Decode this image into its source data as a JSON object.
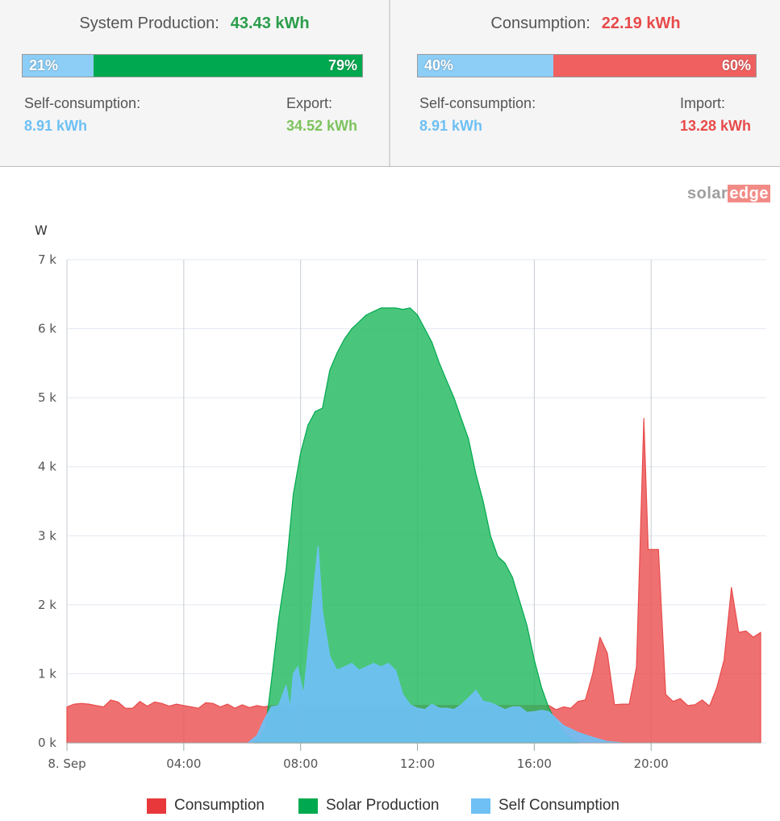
{
  "summary": {
    "production": {
      "label": "System Production:",
      "value": "43.43 kWh",
      "bar": {
        "left_pct": "21%",
        "right_pct": "79%",
        "left_fraction": 0.21
      },
      "self_label": "Self-consumption:",
      "self_value": "8.91 kWh",
      "other_label": "Export:",
      "other_value": "34.52 kWh"
    },
    "consumption": {
      "label": "Consumption:",
      "value": "22.19 kWh",
      "bar": {
        "left_pct": "40%",
        "right_pct": "60%",
        "left_fraction": 0.4
      },
      "self_label": "Self-consumption:",
      "self_value": "8.91 kWh",
      "other_label": "Import:",
      "other_value": "13.28 kWh"
    }
  },
  "logo": {
    "part1": "solar",
    "part2": "edge"
  },
  "colors": {
    "production": "#00a94f",
    "consumption": "#e84a4a",
    "self": "#6ec0f5",
    "export_text": "#7dc35d",
    "import_text": "#e84a4a",
    "self_text": "#6ec0f5"
  },
  "chart_data": {
    "type": "area",
    "ylabel": "W",
    "ylim": [
      0,
      7000
    ],
    "yticks": [
      "0 k",
      "1 k",
      "2 k",
      "3 k",
      "4 k",
      "5 k",
      "6 k",
      "7 k"
    ],
    "xlim": [
      0,
      23.75
    ],
    "xticks": [
      {
        "h": 0,
        "label": "8. Sep"
      },
      {
        "h": 4,
        "label": "04:00"
      },
      {
        "h": 8,
        "label": "08:00"
      },
      {
        "h": 12,
        "label": "12:00"
      },
      {
        "h": 16,
        "label": "16:00"
      },
      {
        "h": 20,
        "label": "20:00"
      }
    ],
    "grid": true,
    "legend_position": "bottom",
    "series": [
      {
        "name": "Consumption",
        "color": "#e84a4a",
        "points": [
          [
            0,
            520
          ],
          [
            0.25,
            560
          ],
          [
            0.5,
            570
          ],
          [
            0.75,
            560
          ],
          [
            1,
            540
          ],
          [
            1.25,
            520
          ],
          [
            1.5,
            620
          ],
          [
            1.75,
            590
          ],
          [
            2,
            500
          ],
          [
            2.25,
            500
          ],
          [
            2.5,
            600
          ],
          [
            2.75,
            530
          ],
          [
            3,
            590
          ],
          [
            3.25,
            570
          ],
          [
            3.5,
            530
          ],
          [
            3.75,
            560
          ],
          [
            4,
            540
          ],
          [
            4.25,
            520
          ],
          [
            4.5,
            500
          ],
          [
            4.75,
            580
          ],
          [
            5,
            570
          ],
          [
            5.25,
            520
          ],
          [
            5.5,
            560
          ],
          [
            5.75,
            500
          ],
          [
            6,
            550
          ],
          [
            6.25,
            510
          ],
          [
            6.5,
            540
          ],
          [
            6.75,
            520
          ],
          [
            7,
            540
          ],
          [
            16.5,
            540
          ],
          [
            16.75,
            480
          ],
          [
            17,
            520
          ],
          [
            17.25,
            500
          ],
          [
            17.5,
            600
          ],
          [
            17.75,
            620
          ],
          [
            18,
            1000
          ],
          [
            18.25,
            1530
          ],
          [
            18.5,
            1300
          ],
          [
            18.75,
            550
          ],
          [
            19,
            560
          ],
          [
            19.25,
            560
          ],
          [
            19.5,
            1100
          ],
          [
            19.75,
            4700
          ],
          [
            19.9,
            2800
          ],
          [
            20.25,
            2800
          ],
          [
            20.5,
            700
          ],
          [
            20.75,
            600
          ],
          [
            21,
            640
          ],
          [
            21.25,
            540
          ],
          [
            21.5,
            550
          ],
          [
            21.75,
            620
          ],
          [
            22,
            530
          ],
          [
            22.25,
            800
          ],
          [
            22.5,
            1200
          ],
          [
            22.75,
            2250
          ],
          [
            23,
            1600
          ],
          [
            23.25,
            1620
          ],
          [
            23.5,
            1530
          ],
          [
            23.75,
            1600
          ]
        ]
      },
      {
        "name": "Solar Production",
        "color": "#00a94f",
        "points": [
          [
            6.4,
            0
          ],
          [
            6.6,
            80
          ],
          [
            6.8,
            200
          ],
          [
            7,
            900
          ],
          [
            7.25,
            1800
          ],
          [
            7.5,
            2500
          ],
          [
            7.75,
            3600
          ],
          [
            8,
            4200
          ],
          [
            8.25,
            4600
          ],
          [
            8.5,
            4800
          ],
          [
            8.75,
            4850
          ],
          [
            9,
            5400
          ],
          [
            9.25,
            5650
          ],
          [
            9.5,
            5850
          ],
          [
            9.75,
            6000
          ],
          [
            10,
            6100
          ],
          [
            10.25,
            6200
          ],
          [
            10.5,
            6250
          ],
          [
            10.75,
            6300
          ],
          [
            11,
            6300
          ],
          [
            11.25,
            6300
          ],
          [
            11.5,
            6280
          ],
          [
            11.75,
            6300
          ],
          [
            12,
            6200
          ],
          [
            12.25,
            6000
          ],
          [
            12.5,
            5800
          ],
          [
            12.75,
            5500
          ],
          [
            13,
            5250
          ],
          [
            13.25,
            5000
          ],
          [
            13.5,
            4700
          ],
          [
            13.75,
            4400
          ],
          [
            14,
            3900
          ],
          [
            14.25,
            3500
          ],
          [
            14.5,
            3000
          ],
          [
            14.75,
            2700
          ],
          [
            15,
            2600
          ],
          [
            15.25,
            2400
          ],
          [
            15.5,
            2050
          ],
          [
            15.75,
            1700
          ],
          [
            16,
            1200
          ],
          [
            16.25,
            800
          ],
          [
            16.5,
            500
          ],
          [
            16.75,
            300
          ],
          [
            17,
            150
          ],
          [
            17.25,
            50
          ],
          [
            17.5,
            0
          ]
        ]
      },
      {
        "name": "Self Consumption",
        "color": "#6ec0f5",
        "points": [
          [
            6.2,
            0
          ],
          [
            6.5,
            100
          ],
          [
            6.75,
            330
          ],
          [
            7,
            520
          ],
          [
            7.25,
            540
          ],
          [
            7.5,
            830
          ],
          [
            7.65,
            500
          ],
          [
            7.75,
            1000
          ],
          [
            7.9,
            1100
          ],
          [
            8.1,
            700
          ],
          [
            8.3,
            1500
          ],
          [
            8.5,
            2450
          ],
          [
            8.6,
            2850
          ],
          [
            8.75,
            1900
          ],
          [
            9,
            1250
          ],
          [
            9.25,
            1050
          ],
          [
            9.5,
            1100
          ],
          [
            9.75,
            1150
          ],
          [
            10,
            1050
          ],
          [
            10.25,
            1100
          ],
          [
            10.5,
            1150
          ],
          [
            10.75,
            1100
          ],
          [
            11,
            1150
          ],
          [
            11.25,
            1050
          ],
          [
            11.5,
            700
          ],
          [
            11.75,
            550
          ],
          [
            12,
            500
          ],
          [
            12.25,
            480
          ],
          [
            12.5,
            560
          ],
          [
            12.75,
            500
          ],
          [
            13,
            500
          ],
          [
            13.25,
            480
          ],
          [
            13.5,
            550
          ],
          [
            13.75,
            650
          ],
          [
            14,
            760
          ],
          [
            14.25,
            600
          ],
          [
            14.5,
            580
          ],
          [
            14.75,
            530
          ],
          [
            15,
            480
          ],
          [
            15.25,
            520
          ],
          [
            15.5,
            520
          ],
          [
            15.75,
            440
          ],
          [
            16,
            450
          ],
          [
            16.25,
            470
          ],
          [
            16.5,
            450
          ],
          [
            17,
            250
          ],
          [
            17.5,
            150
          ],
          [
            18,
            80
          ],
          [
            18.5,
            20
          ],
          [
            19,
            0
          ]
        ]
      }
    ]
  }
}
